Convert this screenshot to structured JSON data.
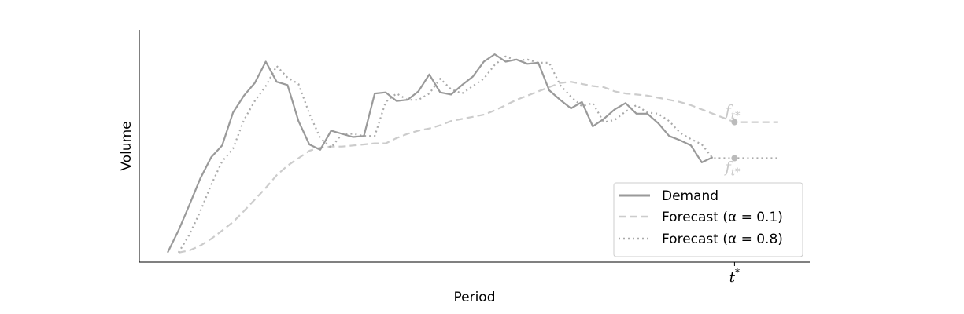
{
  "chart_data": {
    "type": "line",
    "xlabel": "Period",
    "ylabel": "Volume",
    "xlim": [
      -2.6,
      58.9
    ],
    "ylim": [
      -0.45,
      10.5
    ],
    "xticks": [
      {
        "value": 52,
        "label": "t*"
      }
    ],
    "grid": false,
    "legend_position": "bottom-right",
    "colors": {
      "demand": "#9a9a9a",
      "alpha01": "#cccccc",
      "alpha08": "#aaaaaa"
    },
    "series": [
      {
        "name": "Demand",
        "style": "solid",
        "x": [
          0,
          1,
          2,
          3,
          4,
          5,
          6,
          7,
          8,
          9,
          10,
          11,
          12,
          13,
          14,
          15,
          16,
          17,
          18,
          19,
          20,
          21,
          22,
          23,
          24,
          25,
          26,
          27,
          28,
          29,
          30,
          31,
          32,
          33,
          34,
          35,
          36,
          37,
          38,
          39,
          40,
          41,
          42,
          43,
          44,
          45,
          46,
          47,
          48,
          49,
          50
        ],
        "y": [
          0,
          1.05,
          2.25,
          3.5,
          4.5,
          5.05,
          6.6,
          7.4,
          8.0,
          9.0,
          8.05,
          7.9,
          6.2,
          5.1,
          4.85,
          5.75,
          5.6,
          5.45,
          5.5,
          7.5,
          7.55,
          7.15,
          7.2,
          7.6,
          8.4,
          7.55,
          7.45,
          7.9,
          8.3,
          9.0,
          9.35,
          9.0,
          9.1,
          8.9,
          8.95,
          7.65,
          7.2,
          6.8,
          7.1,
          5.95,
          6.3,
          6.75,
          7.05,
          6.55,
          6.55,
          6.1,
          5.5,
          5.3,
          5.05,
          4.25,
          4.5
        ]
      },
      {
        "name": "Forecast (α = 0.1)",
        "style": "dashed",
        "x": [
          1,
          2,
          3,
          4,
          5,
          6,
          7,
          8,
          9,
          10,
          11,
          12,
          13,
          14,
          15,
          16,
          17,
          18,
          19,
          20,
          21,
          22,
          23,
          24,
          25,
          26,
          27,
          28,
          29,
          30,
          31,
          32,
          33,
          34,
          35,
          36,
          37,
          38,
          39,
          40,
          41,
          42,
          43,
          44,
          45,
          46,
          47,
          48,
          49,
          50,
          51,
          52,
          53,
          54,
          55,
          56
        ],
        "y": [
          0,
          0.1,
          0.33,
          0.65,
          1.04,
          1.44,
          1.96,
          2.5,
          3.05,
          3.65,
          4.1,
          4.45,
          4.8,
          4.95,
          5.0,
          5.0,
          5.05,
          5.1,
          5.15,
          5.15,
          5.4,
          5.6,
          5.75,
          5.85,
          6.0,
          6.2,
          6.3,
          6.4,
          6.5,
          6.7,
          6.95,
          7.2,
          7.4,
          7.6,
          7.8,
          8.0,
          8.05,
          7.95,
          7.85,
          7.8,
          7.6,
          7.5,
          7.45,
          7.4,
          7.3,
          7.2,
          7.1,
          6.95,
          6.75,
          6.55,
          6.35,
          6.15,
          6.15,
          6.15,
          6.15,
          6.15
        ]
      },
      {
        "name": "Forecast (α = 0.8)",
        "style": "dotted",
        "x": [
          1,
          2,
          3,
          4,
          5,
          6,
          7,
          8,
          9,
          10,
          11,
          12,
          13,
          14,
          15,
          16,
          17,
          18,
          19,
          20,
          21,
          22,
          23,
          24,
          25,
          26,
          27,
          28,
          29,
          30,
          31,
          32,
          33,
          34,
          35,
          36,
          37,
          38,
          39,
          40,
          41,
          42,
          43,
          44,
          45,
          46,
          47,
          48,
          49,
          50,
          51,
          52,
          53,
          54,
          55,
          56
        ],
        "y": [
          0,
          0.85,
          1.95,
          3.2,
          4.3,
          4.9,
          6.25,
          7.15,
          7.85,
          8.8,
          8.25,
          7.95,
          6.55,
          5.4,
          4.95,
          5.6,
          5.6,
          5.5,
          5.5,
          7.1,
          7.5,
          7.2,
          7.2,
          7.5,
          8.2,
          7.7,
          7.5,
          7.85,
          8.2,
          8.85,
          9.25,
          9.05,
          9.1,
          8.95,
          8.95,
          7.9,
          7.35,
          6.9,
          7.05,
          6.15,
          6.25,
          6.65,
          6.95,
          6.6,
          6.55,
          6.2,
          5.65,
          5.35,
          5.1,
          4.45,
          4.45,
          4.45,
          4.45,
          4.45,
          4.45,
          4.45
        ]
      }
    ],
    "annotations": [
      {
        "text": "f",
        "sub": "t*",
        "at_series": "Forecast (α = 0.1)",
        "x": 52,
        "y": 6.15
      },
      {
        "text": "f",
        "sub": "t*",
        "at_series": "Forecast (α = 0.8)",
        "x": 52,
        "y": 4.45
      }
    ]
  }
}
